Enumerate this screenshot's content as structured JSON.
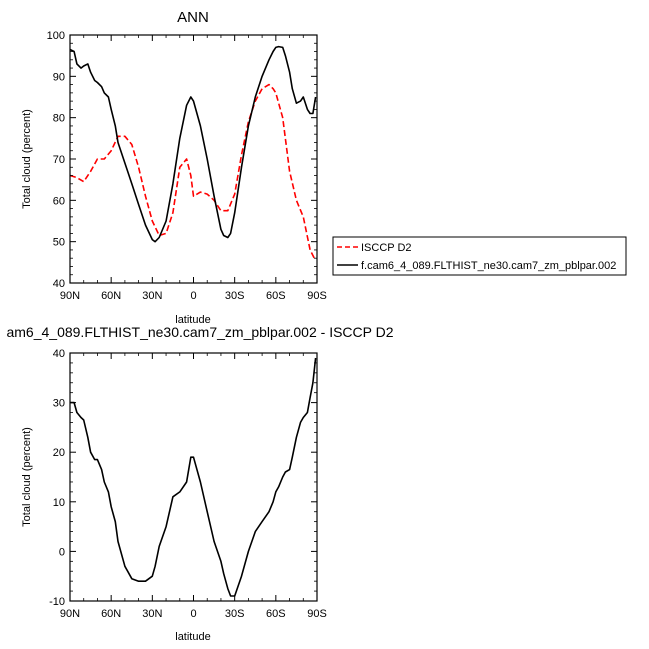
{
  "chart_data": [
    {
      "type": "line",
      "title": "ANN",
      "xlabel": "latitude",
      "ylabel": "Total cloud (percent)",
      "xlim": [
        90,
        -90
      ],
      "ylim": [
        40,
        100
      ],
      "x_tick_values": [
        90,
        60,
        30,
        0,
        -30,
        -60,
        -90
      ],
      "x_tick_labels": [
        "90N",
        "60N",
        "30N",
        "0",
        "30S",
        "60S",
        "90S"
      ],
      "y_tick_values": [
        40,
        50,
        60,
        70,
        80,
        90,
        100
      ],
      "legend_position": "right",
      "series": [
        {
          "name": "ISCCP D2",
          "color": "#ff0000",
          "dash": "dashed",
          "x": [
            90,
            85,
            80,
            75,
            70,
            65,
            60,
            55,
            50,
            45,
            40,
            35,
            30,
            25,
            20,
            15,
            10,
            5,
            2,
            0,
            -5,
            -10,
            -15,
            -20,
            -25,
            -30,
            -35,
            -40,
            -45,
            -50,
            -55,
            -58,
            -60,
            -65,
            -70,
            -75,
            -80,
            -85,
            -88
          ],
          "y": [
            66,
            65.5,
            64.5,
            67,
            70,
            70,
            72,
            75.5,
            75.5,
            73.5,
            68,
            61,
            55,
            51.5,
            52,
            57,
            68,
            70,
            66,
            61,
            62,
            61.5,
            60,
            57.5,
            57.5,
            61.5,
            71,
            79,
            84,
            87,
            88,
            87,
            86,
            80,
            67,
            60,
            56,
            48,
            46
          ]
        },
        {
          "name": "f.cam6_4_089.FLTHIST_ne30.cam7_zm_pblpar.002",
          "color": "#000000",
          "dash": "solid",
          "x": [
            90,
            87,
            85,
            82,
            80,
            77,
            75,
            72,
            70,
            67,
            65,
            62,
            60,
            57,
            55,
            50,
            45,
            40,
            35,
            30,
            28,
            25,
            20,
            15,
            10,
            5,
            2,
            0,
            -5,
            -10,
            -15,
            -20,
            -22,
            -25,
            -27,
            -30,
            -35,
            -40,
            -45,
            -50,
            -55,
            -58,
            -60,
            -62,
            -65,
            -67,
            -70,
            -72,
            -75,
            -78,
            -80,
            -83,
            -85,
            -87,
            -89
          ],
          "y": [
            96.5,
            96,
            93,
            92,
            92.5,
            93,
            91,
            89,
            88.5,
            87.5,
            86,
            85,
            82,
            78,
            74,
            69,
            64,
            59,
            54,
            50.5,
            50,
            51,
            55,
            64,
            75,
            83,
            85,
            84,
            78,
            70,
            61,
            53,
            51.5,
            51,
            52,
            57,
            68,
            78,
            85,
            90,
            94,
            96,
            97,
            97.2,
            97,
            95,
            91,
            87,
            83.5,
            84,
            85,
            82,
            81,
            81,
            85
          ]
        }
      ]
    },
    {
      "type": "line",
      "title": "am6_4_089.FLTHIST_ne30.cam7_zm_pblpar.002 - ISCCP D2",
      "xlabel": "latitude",
      "ylabel": "Total cloud (percent)",
      "xlim": [
        90,
        -90
      ],
      "ylim": [
        -10,
        40
      ],
      "x_tick_values": [
        90,
        60,
        30,
        0,
        -30,
        -60,
        -90
      ],
      "x_tick_labels": [
        "90N",
        "60N",
        "30N",
        "0",
        "30S",
        "60S",
        "90S"
      ],
      "y_tick_values": [
        -10,
        0,
        10,
        20,
        30,
        40
      ],
      "series": [
        {
          "color": "#000000",
          "dash": "solid",
          "x": [
            90,
            87,
            85,
            82,
            80,
            77,
            75,
            72,
            70,
            67,
            65,
            62,
            60,
            57,
            55,
            50,
            45,
            40,
            35,
            30,
            28,
            25,
            20,
            15,
            10,
            5,
            2,
            0,
            -5,
            -10,
            -15,
            -20,
            -22,
            -25,
            -27,
            -30,
            -35,
            -40,
            -45,
            -50,
            -55,
            -58,
            -60,
            -62,
            -65,
            -67,
            -70,
            -72,
            -75,
            -78,
            -80,
            -83,
            -85,
            -87,
            -89
          ],
          "y": [
            30,
            30,
            28,
            27,
            26.5,
            23,
            20,
            18.5,
            18.5,
            16.5,
            14,
            12,
            9,
            6,
            2,
            -3,
            -5.5,
            -6,
            -6,
            -5,
            -3,
            1,
            5,
            11,
            12,
            14,
            19,
            19,
            14,
            8,
            2,
            -2,
            -4.5,
            -7.5,
            -9,
            -9,
            -5,
            0,
            4,
            6,
            8,
            10,
            12,
            13,
            15,
            16,
            16.5,
            19,
            23,
            26,
            27,
            28,
            31,
            34,
            39
          ]
        }
      ]
    }
  ]
}
